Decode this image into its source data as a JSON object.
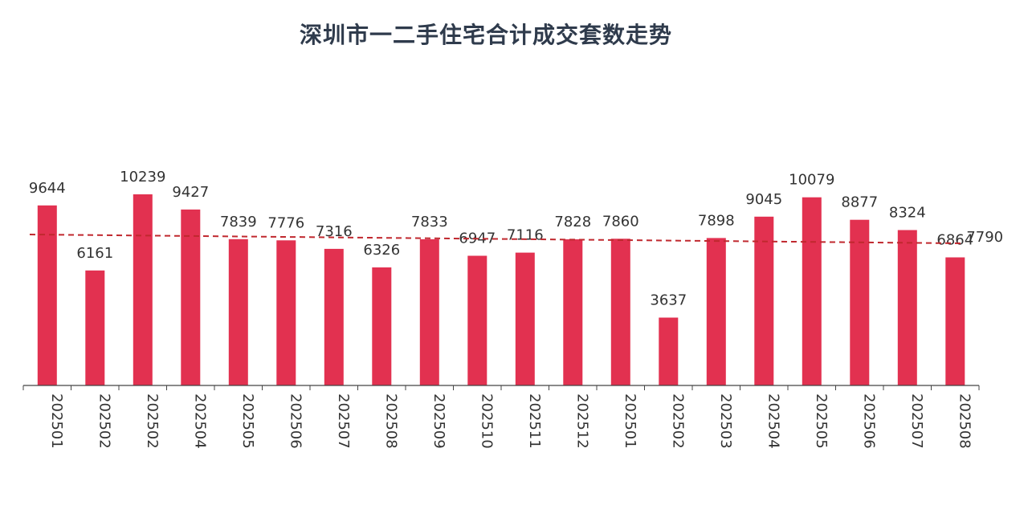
{
  "chart_data": {
    "type": "bar",
    "title": "深圳市一二手住宅合计成交套数走势",
    "categories": [
      "202501",
      "202502",
      "202502",
      "202504",
      "202505",
      "202506",
      "202507",
      "202508",
      "202509",
      "202510",
      "202511",
      "202512",
      "202501",
      "202502",
      "202503",
      "202504",
      "202505",
      "202506",
      "202507",
      "202508"
    ],
    "values": [
      9644,
      6161,
      10239,
      9427,
      7839,
      7776,
      7316,
      6326,
      7833,
      6947,
      7116,
      7828,
      7860,
      3637,
      7898,
      9045,
      10079,
      8877,
      8324,
      6864
    ],
    "trendline": {
      "style": "dashed",
      "color": "#c0282e",
      "end_label": "7790"
    },
    "ylim": [
      0,
      11000
    ],
    "grid": false,
    "colors": {
      "bar": "#e23150",
      "trend": "#c0282e"
    }
  }
}
